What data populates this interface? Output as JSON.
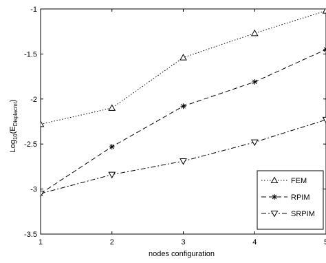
{
  "chart_data": {
    "type": "line",
    "xlabel": "nodes configuration",
    "ylabel_main": "Log",
    "ylabel_sub": "10",
    "ylabel_paren_open": "(E",
    "ylabel_sub2": "Displacmt",
    "ylabel_paren_close": ")",
    "xlim": [
      1,
      5
    ],
    "ylim": [
      -3.5,
      -1
    ],
    "x_ticks": [
      1,
      2,
      3,
      4,
      5
    ],
    "y_ticks": [
      -3.5,
      -3,
      -2.5,
      -2,
      -1.5,
      -1
    ],
    "x_tick_labels": [
      "1",
      "2",
      "3",
      "4",
      "5"
    ],
    "y_tick_labels": [
      "-3.5",
      "-3",
      "-2.5",
      "-2",
      "-1.5",
      "-1"
    ],
    "grid": false,
    "legend_position": "bottom-right",
    "x": [
      1,
      2,
      3,
      4,
      5
    ],
    "series": [
      {
        "name": "FEM",
        "values": [
          -2.28,
          -2.1,
          -1.54,
          -1.27,
          -1.02
        ],
        "linestyle": "dotted",
        "marker": "triangle-up",
        "color": "#000000"
      },
      {
        "name": "RPIM",
        "values": [
          -3.05,
          -2.53,
          -2.08,
          -1.81,
          -1.45
        ],
        "linestyle": "dashed",
        "marker": "star",
        "color": "#000000"
      },
      {
        "name": "SRPIM",
        "values": [
          -3.05,
          -2.84,
          -2.69,
          -2.48,
          -2.23
        ],
        "linestyle": "dashdot",
        "marker": "triangle-down",
        "color": "#000000"
      }
    ]
  }
}
